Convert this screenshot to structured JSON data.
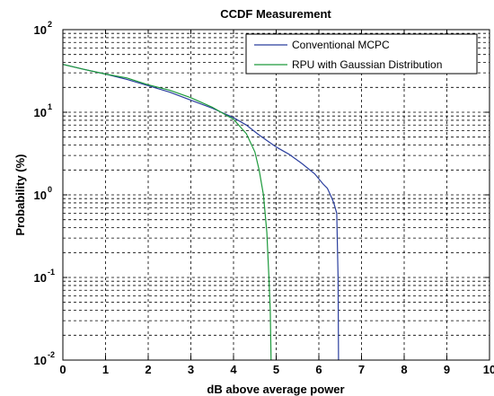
{
  "chart_data": {
    "type": "line",
    "title": "CCDF Measurement",
    "xlabel": "dB above average power",
    "ylabel": "Probability (%)",
    "xlim": [
      0,
      10
    ],
    "ylim": [
      0.01,
      100
    ],
    "yscale": "log",
    "grid": true,
    "legend_position": "top-right",
    "x_ticks": [
      "0",
      "1",
      "2",
      "3",
      "4",
      "5",
      "6",
      "7",
      "8",
      "9",
      "10"
    ],
    "y_ticks": [
      {
        "base": "10",
        "exp": "-2",
        "value": 0.01
      },
      {
        "base": "10",
        "exp": "-1",
        "value": 0.1
      },
      {
        "base": "10",
        "exp": "0",
        "value": 1
      },
      {
        "base": "10",
        "exp": "1",
        "value": 10
      },
      {
        "base": "10",
        "exp": "2",
        "value": 100
      }
    ],
    "series": [
      {
        "name": "Conventional MCPC",
        "color": "#2b3f9e",
        "points": [
          [
            0,
            38
          ],
          [
            0.5,
            33
          ],
          [
            1,
            29
          ],
          [
            1.5,
            25
          ],
          [
            2,
            21
          ],
          [
            2.5,
            17.5
          ],
          [
            3,
            14
          ],
          [
            3.5,
            11.2
          ],
          [
            4,
            8.6
          ],
          [
            4.3,
            7.0
          ],
          [
            4.6,
            5.3
          ],
          [
            5,
            3.8
          ],
          [
            5.3,
            3.1
          ],
          [
            5.6,
            2.4
          ],
          [
            5.9,
            1.8
          ],
          [
            6.1,
            1.35
          ],
          [
            6.2,
            1.2
          ],
          [
            6.3,
            0.92
          ],
          [
            6.35,
            0.8
          ],
          [
            6.42,
            0.6
          ],
          [
            6.45,
            0.1
          ],
          [
            6.46,
            0.01
          ]
        ]
      },
      {
        "name": "RPU with Gaussian Distribution",
        "color": "#1d9a3c",
        "points": [
          [
            0,
            38
          ],
          [
            0.5,
            33
          ],
          [
            1,
            29
          ],
          [
            1.5,
            26
          ],
          [
            2,
            21.5
          ],
          [
            2.5,
            18.5
          ],
          [
            3,
            15
          ],
          [
            3.5,
            11.5
          ],
          [
            4,
            8.2
          ],
          [
            4.3,
            5.5
          ],
          [
            4.5,
            3.3
          ],
          [
            4.6,
            2.0
          ],
          [
            4.7,
            1.0
          ],
          [
            4.78,
            0.35
          ],
          [
            4.83,
            0.1
          ],
          [
            4.86,
            0.04
          ],
          [
            4.88,
            0.01
          ]
        ]
      }
    ]
  }
}
